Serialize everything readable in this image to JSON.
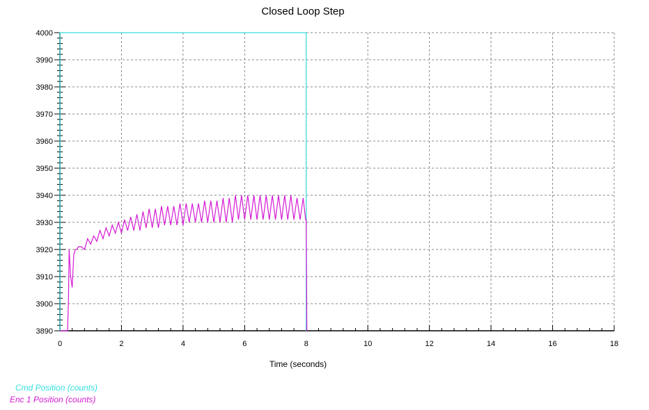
{
  "colors": {
    "cmd": "#33dede",
    "enc": "#d41ad4",
    "grid": "#888888",
    "axis": "#000000"
  },
  "chart_data": {
    "type": "line",
    "title": "Closed Loop Step",
    "xlabel": "Time (seconds)",
    "ylabel": "",
    "xlim": [
      0,
      18
    ],
    "ylim": [
      3890,
      4000
    ],
    "x_ticks": [
      "0",
      "2",
      "4",
      "6",
      "8",
      "10",
      "12",
      "14",
      "16",
      "18"
    ],
    "y_ticks": [
      "3890",
      "3900",
      "3910",
      "3920",
      "3930",
      "3940",
      "3950",
      "3960",
      "3970",
      "3980",
      "3990",
      "4000"
    ],
    "grid": true,
    "legend_position": "bottom-left",
    "series": [
      {
        "name": "Cmd Position (counts)",
        "x": [
          0.0,
          0.0,
          8.0,
          8.0
        ],
        "y": [
          3890,
          4000,
          4000,
          3890
        ]
      },
      {
        "name": "Enc 1 Position (counts)",
        "x": [
          0.0,
          0.25,
          0.28,
          0.3,
          0.35,
          0.4,
          0.45,
          0.5,
          0.55,
          0.6,
          0.7,
          0.8,
          0.9,
          1.0,
          1.1,
          1.2,
          1.3,
          1.4,
          1.5,
          1.6,
          1.7,
          1.8,
          1.9,
          2.0,
          2.1,
          2.2,
          2.3,
          2.4,
          2.5,
          2.6,
          2.7,
          2.8,
          2.9,
          3.0,
          3.1,
          3.2,
          3.3,
          3.4,
          3.5,
          3.6,
          3.7,
          3.8,
          3.9,
          4.0,
          4.1,
          4.2,
          4.3,
          4.4,
          4.5,
          4.6,
          4.7,
          4.8,
          4.9,
          5.0,
          5.1,
          5.2,
          5.3,
          5.4,
          5.5,
          5.6,
          5.7,
          5.8,
          5.9,
          6.0,
          6.1,
          6.2,
          6.3,
          6.4,
          6.5,
          6.6,
          6.7,
          6.8,
          6.9,
          7.0,
          7.1,
          7.2,
          7.3,
          7.4,
          7.5,
          7.6,
          7.7,
          7.8,
          7.9,
          7.98,
          8.0,
          8.02
        ],
        "y": [
          3890,
          3890,
          3902,
          3920,
          3910,
          3906,
          3918,
          3920,
          3920,
          3921,
          3921,
          3920,
          3924,
          3922,
          3925,
          3923,
          3927,
          3924,
          3928,
          3925,
          3929,
          3926,
          3930,
          3926,
          3931,
          3927,
          3932,
          3927,
          3933,
          3927,
          3934,
          3928,
          3935,
          3928,
          3935,
          3928,
          3936,
          3929,
          3936,
          3929,
          3936,
          3929,
          3937,
          3929,
          3937,
          3930,
          3937,
          3930,
          3937,
          3930,
          3938,
          3930,
          3938,
          3930,
          3938,
          3930,
          3939,
          3930,
          3939,
          3930,
          3940,
          3931,
          3940,
          3931,
          3940,
          3931,
          3940,
          3931,
          3940,
          3931,
          3940,
          3931,
          3940,
          3931,
          3940,
          3931,
          3940,
          3931,
          3940,
          3931,
          3939,
          3931,
          3939,
          3931,
          3931,
          3890
        ]
      }
    ]
  }
}
